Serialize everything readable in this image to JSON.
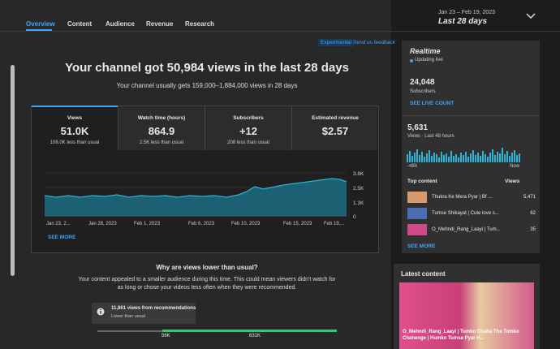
{
  "nav": {
    "tabs": [
      "Overview",
      "Content",
      "Audience",
      "Revenue",
      "Research"
    ],
    "date_range": "Jan 23 – Feb 19, 2023",
    "period": "Last 28 days"
  },
  "header": {
    "experimental": "Experimental",
    "feedback": "Send us feedback",
    "title": "Your channel got 50,984 views in the last 28 days",
    "subtitle": "Your channel usually gets 159,000–1,884,000 views in 28 days"
  },
  "metrics": [
    {
      "label": "Views",
      "value": "51.0K",
      "note": "108.0K less than usual"
    },
    {
      "label": "Watch time (hours)",
      "value": "864.9",
      "note": "2.5K less than usual"
    },
    {
      "label": "Subscribers",
      "value": "+12",
      "note": "208 less than usual"
    },
    {
      "label": "Estimated revenue",
      "value": "$2.57"
    }
  ],
  "chart": {
    "x_labels": [
      "Jan 23, 2...",
      "Jan 28, 2023",
      "Feb 1, 2023",
      "Feb 6, 2023",
      "Feb 10, 2023",
      "Feb 15, 2023",
      "Feb 19,..."
    ],
    "y_labels": [
      "3.8K",
      "2.5K",
      "1.3K",
      "0"
    ],
    "link": "SEE MORE"
  },
  "why": {
    "title": "Why are views lower than usual?",
    "body": "Your content appealed to a smaller audience during this time. This could mean viewers didn't watch for as long or chose your videos less often when they were recommended.",
    "card_title": "11,861 views from recommendations",
    "card_note": "Lower than usual",
    "range": [
      "56K",
      "631K"
    ]
  },
  "realtime": {
    "title": "Realtime",
    "status": "Updating live",
    "subscribers": "24,048",
    "subscribers_label": "Subscribers",
    "live_link": "SEE LIVE COUNT",
    "views": "5,631",
    "views_label": "Views · Last 48 hours",
    "axis": [
      "-48h",
      "Now"
    ],
    "top_content_label": "Top content",
    "views_col": "Views",
    "items": [
      {
        "title": "Thukra Ke Mera Pyar | Bf ...",
        "views": "5,471"
      },
      {
        "title": "Tumse Shikayat | Cute love s...",
        "views": "62"
      },
      {
        "title": "O_Mehndi_Rang_Laayi | Tum...",
        "views": "35"
      }
    ],
    "more": "SEE MORE"
  },
  "latest": {
    "title": "Latest content",
    "video_title": "O_Mehndi_Rang_Laayi | Tumko Chaha Tha Tumko Chahenge | Humko Tumse Pyar H..."
  }
}
